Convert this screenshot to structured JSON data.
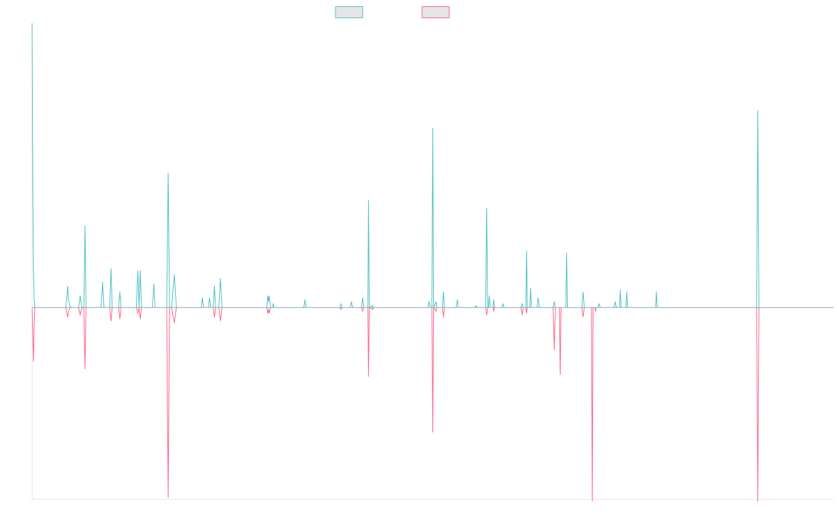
{
  "chart_data": {
    "type": "line",
    "title": "",
    "xlabel": "",
    "ylabel": "",
    "ylim": [
      -100,
      145
    ],
    "xlim": [
      0,
      1000
    ],
    "grid": false,
    "legend_position": "top-center",
    "series": [
      {
        "color": "#4bc0c0",
        "points": [
          [
            0,
            146
          ],
          [
            0.9,
            60
          ],
          [
            1.7,
            20
          ],
          [
            2.6,
            5
          ],
          [
            3.5,
            0
          ],
          [
            42,
            0
          ],
          [
            43.5,
            6
          ],
          [
            44.5,
            11
          ],
          [
            45.5,
            4
          ],
          [
            47,
            1
          ],
          [
            49,
            0
          ],
          [
            58,
            0
          ],
          [
            60,
            6
          ],
          [
            61.5,
            1
          ],
          [
            63,
            0
          ],
          [
            64.6,
            0
          ],
          [
            66,
            42
          ],
          [
            67.3,
            0
          ],
          [
            86,
            0
          ],
          [
            88,
            13
          ],
          [
            89.7,
            0
          ],
          [
            97,
            0
          ],
          [
            98.5,
            20
          ],
          [
            100,
            0
          ],
          [
            108,
            0
          ],
          [
            109.5,
            8
          ],
          [
            111,
            0
          ],
          [
            130,
            0
          ],
          [
            132,
            19
          ],
          [
            133.5,
            0
          ],
          [
            135,
            19
          ],
          [
            136.5,
            0
          ],
          [
            150,
            0
          ],
          [
            152,
            12
          ],
          [
            153.5,
            0
          ],
          [
            168,
            0
          ],
          [
            169.8,
            69
          ],
          [
            171.5,
            0
          ],
          [
            174,
            0
          ],
          [
            177.5,
            17
          ],
          [
            180,
            0
          ],
          [
            211,
            0
          ],
          [
            212.5,
            5
          ],
          [
            214,
            0
          ],
          [
            220,
            0
          ],
          [
            221.5,
            5
          ],
          [
            223,
            0
          ],
          [
            226,
            0
          ],
          [
            227.5,
            11
          ],
          [
            229,
            0
          ],
          [
            233,
            0
          ],
          [
            235,
            15
          ],
          [
            237,
            0
          ],
          [
            293,
            0
          ],
          [
            294,
            6
          ],
          [
            295,
            3
          ],
          [
            296,
            6
          ],
          [
            297.5,
            0
          ],
          [
            300,
            0
          ],
          [
            301,
            2
          ],
          [
            302,
            0
          ],
          [
            339,
            0
          ],
          [
            340.5,
            4
          ],
          [
            342,
            0
          ],
          [
            384,
            0
          ],
          [
            385.5,
            2
          ],
          [
            387,
            0
          ],
          [
            397,
            0
          ],
          [
            398.5,
            3
          ],
          [
            400,
            0
          ],
          [
            411,
            0
          ],
          [
            412.5,
            5
          ],
          [
            414,
            0
          ],
          [
            419,
            0
          ],
          [
            419.8,
            55
          ],
          [
            420.8,
            0
          ],
          [
            425,
            1
          ],
          [
            426,
            0
          ],
          [
            494,
            0
          ],
          [
            495.5,
            3
          ],
          [
            497,
            0
          ],
          [
            498.8,
            0
          ],
          [
            500,
            92
          ],
          [
            501,
            0
          ],
          [
            504,
            3
          ],
          [
            505,
            0
          ],
          [
            512,
            0
          ],
          [
            513.3,
            8
          ],
          [
            514.5,
            0
          ],
          [
            529,
            0
          ],
          [
            530.7,
            4
          ],
          [
            532,
            0
          ],
          [
            553,
            0
          ],
          [
            554,
            1
          ],
          [
            555,
            0
          ],
          [
            566,
            0
          ],
          [
            567.2,
            51
          ],
          [
            568.5,
            0
          ],
          [
            569.5,
            0
          ],
          [
            570.5,
            6
          ],
          [
            571.5,
            0
          ],
          [
            575,
            0
          ],
          [
            576,
            4
          ],
          [
            577,
            0
          ],
          [
            586,
            0
          ],
          [
            587.5,
            2
          ],
          [
            589,
            0
          ],
          [
            610,
            0
          ],
          [
            611.5,
            2
          ],
          [
            613,
            0
          ],
          [
            616,
            0
          ],
          [
            617,
            29
          ],
          [
            618,
            0
          ],
          [
            621,
            0
          ],
          [
            622,
            10
          ],
          [
            623,
            0
          ],
          [
            630,
            0
          ],
          [
            631.5,
            5
          ],
          [
            633,
            0
          ],
          [
            650,
            0
          ],
          [
            651.5,
            3
          ],
          [
            653,
            0
          ],
          [
            666,
            0
          ],
          [
            667,
            28
          ],
          [
            668,
            0
          ],
          [
            686,
            0
          ],
          [
            687.5,
            8
          ],
          [
            689,
            0
          ],
          [
            706,
            0
          ],
          [
            707.5,
            2
          ],
          [
            709,
            0
          ],
          [
            726,
            0
          ],
          [
            727.5,
            3
          ],
          [
            729,
            0
          ],
          [
            733,
            0
          ],
          [
            734,
            9
          ],
          [
            735,
            0
          ],
          [
            741,
            0
          ],
          [
            742,
            8
          ],
          [
            743,
            0
          ],
          [
            778,
            0
          ],
          [
            779,
            8
          ],
          [
            780,
            0
          ],
          [
            904,
            0
          ],
          [
            905.5,
            101
          ],
          [
            907,
            0
          ],
          [
            1000,
            0
          ]
        ]
      },
      {
        "color": "#ff6384",
        "points": [
          [
            0,
            0
          ],
          [
            0.9,
            -15
          ],
          [
            1.7,
            -28
          ],
          [
            2.6,
            -10
          ],
          [
            3.5,
            0
          ],
          [
            42,
            0
          ],
          [
            43.5,
            -3
          ],
          [
            44.5,
            -5
          ],
          [
            45.5,
            -2
          ],
          [
            47,
            0
          ],
          [
            49,
            0
          ],
          [
            58,
            0
          ],
          [
            60,
            -4
          ],
          [
            61.5,
            -1
          ],
          [
            63,
            0
          ],
          [
            64.6,
            0
          ],
          [
            66,
            -32
          ],
          [
            67.3,
            0
          ],
          [
            97,
            0
          ],
          [
            98.5,
            -7
          ],
          [
            100,
            0
          ],
          [
            108,
            0
          ],
          [
            109.5,
            -6
          ],
          [
            111,
            0
          ],
          [
            130,
            0
          ],
          [
            132,
            -3
          ],
          [
            133.5,
            0
          ],
          [
            135,
            -6
          ],
          [
            136.5,
            0
          ],
          [
            168,
            0
          ],
          [
            169.8,
            -99
          ],
          [
            171.5,
            0
          ],
          [
            174,
            0
          ],
          [
            177.5,
            -8
          ],
          [
            180,
            0
          ],
          [
            226,
            0
          ],
          [
            227.5,
            -5
          ],
          [
            229,
            0
          ],
          [
            233,
            0
          ],
          [
            235,
            -7
          ],
          [
            237,
            0
          ],
          [
            293,
            0
          ],
          [
            294,
            -3
          ],
          [
            295,
            -1
          ],
          [
            296,
            -3
          ],
          [
            297.5,
            0
          ],
          [
            384,
            0
          ],
          [
            385.5,
            -1
          ],
          [
            387,
            0
          ],
          [
            411,
            0
          ],
          [
            412.5,
            -2
          ],
          [
            414,
            0
          ],
          [
            419,
            0
          ],
          [
            419.8,
            -36
          ],
          [
            420.8,
            0
          ],
          [
            425,
            -1
          ],
          [
            426,
            0
          ],
          [
            498.8,
            0
          ],
          [
            500,
            -65
          ],
          [
            501,
            0
          ],
          [
            504,
            -2
          ],
          [
            505,
            0
          ],
          [
            512,
            0
          ],
          [
            513.3,
            -5
          ],
          [
            514.5,
            0
          ],
          [
            566,
            0
          ],
          [
            567.2,
            -4
          ],
          [
            568.5,
            0
          ],
          [
            575,
            0
          ],
          [
            576,
            -2
          ],
          [
            577,
            0
          ],
          [
            610,
            0
          ],
          [
            611.5,
            -4
          ],
          [
            613,
            0
          ],
          [
            616,
            0
          ],
          [
            617,
            -3
          ],
          [
            618,
            0
          ],
          [
            650,
            0
          ],
          [
            651.5,
            -22
          ],
          [
            653,
            0
          ],
          [
            658,
            0
          ],
          [
            659,
            -35
          ],
          [
            660,
            0
          ],
          [
            686,
            0
          ],
          [
            687.5,
            -5
          ],
          [
            689,
            0
          ],
          [
            698,
            0
          ],
          [
            699,
            -101
          ],
          [
            700,
            0
          ],
          [
            702,
            0
          ],
          [
            703,
            -2
          ],
          [
            704,
            0
          ],
          [
            904,
            0
          ],
          [
            905.5,
            -101
          ],
          [
            907,
            0
          ],
          [
            1000,
            0
          ]
        ]
      }
    ]
  }
}
